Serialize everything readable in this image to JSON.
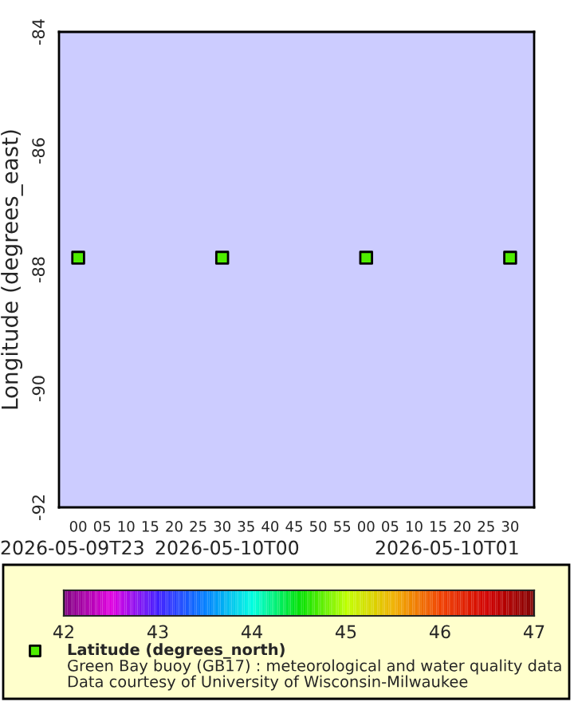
{
  "chart_data": {
    "type": "scatter",
    "title": "Green Bay buoy (GB17) : meteorological and water quality data",
    "ylabel": "Longitude (degrees_east)",
    "annotations": [
      "2026-05-09T23",
      "2026-05-10T00",
      "2026-05-10T01",
      "Data courtesy of University of Wisconsin-Milwaukee"
    ],
    "series": [
      {
        "name": "Latitude (degrees_north)",
        "x": [
          "2026-05-10T00:00",
          "2026-05-10T00:30",
          "2026-05-10T01:00",
          "2026-05-10T01:30"
        ],
        "values": [
          -87.8,
          -87.8,
          -87.8,
          -87.8
        ],
        "cvalues": [
          44.7,
          44.7,
          44.7,
          44.7
        ]
      }
    ],
    "xlim": [
      "2026-05-09T23:56",
      "2026-05-10T01:35"
    ],
    "xticks": [
      {
        "value": "2026-05-10T00:00",
        "label": "00"
      },
      {
        "value": "2026-05-10T00:05",
        "label": "05"
      },
      {
        "value": "2026-05-10T00:10",
        "label": "10"
      },
      {
        "value": "2026-05-10T00:15",
        "label": "15"
      },
      {
        "value": "2026-05-10T00:20",
        "label": "20"
      },
      {
        "value": "2026-05-10T00:25",
        "label": "25"
      },
      {
        "value": "2026-05-10T00:30",
        "label": "30"
      },
      {
        "value": "2026-05-10T00:35",
        "label": "35"
      },
      {
        "value": "2026-05-10T00:40",
        "label": "40"
      },
      {
        "value": "2026-05-10T00:45",
        "label": "45"
      },
      {
        "value": "2026-05-10T00:50",
        "label": "50"
      },
      {
        "value": "2026-05-10T00:55",
        "label": "55"
      },
      {
        "value": "2026-05-10T01:00",
        "label": "00"
      },
      {
        "value": "2026-05-10T01:05",
        "label": "05"
      },
      {
        "value": "2026-05-10T01:10",
        "label": "10"
      },
      {
        "value": "2026-05-10T01:15",
        "label": "15"
      },
      {
        "value": "2026-05-10T01:20",
        "label": "20"
      },
      {
        "value": "2026-05-10T01:25",
        "label": "25"
      },
      {
        "value": "2026-05-10T01:30",
        "label": "30"
      }
    ],
    "ylim": [
      -92,
      -84
    ],
    "yticks": [
      -92,
      -90,
      -88,
      -86,
      -84
    ],
    "clim": [
      42,
      47
    ],
    "cticks": [
      42,
      43,
      44,
      45,
      46,
      47
    ],
    "marker": "square",
    "grid": false,
    "legend": "bottom"
  }
}
